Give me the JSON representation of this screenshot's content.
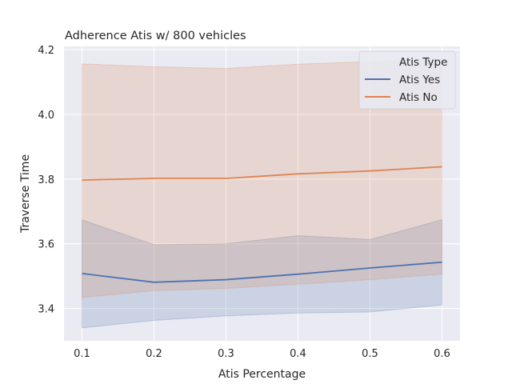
{
  "chart_data": {
    "type": "line",
    "title": "Adherence Atis w/ 800 vehicles",
    "xlabel": "Atis Percentage",
    "ylabel": "Traverse Time",
    "x": [
      0.1,
      0.2,
      0.3,
      0.4,
      0.5,
      0.6
    ],
    "x_ticks": [
      "0.1",
      "0.2",
      "0.3",
      "0.4",
      "0.5",
      "0.6"
    ],
    "y_ticks": [
      "3.4",
      "3.6",
      "3.8",
      "4.0",
      "4.2"
    ],
    "xlim": [
      0.075,
      0.625
    ],
    "ylim": [
      3.3,
      4.21
    ],
    "grid": true,
    "legend_position": "top-right",
    "legend_title": "Atis Type",
    "series": [
      {
        "name": "Atis Yes",
        "color": "#4c72b0",
        "values": [
          3.508,
          3.481,
          3.489,
          3.506,
          3.525,
          3.543
        ],
        "ci_lower": [
          3.34,
          3.363,
          3.377,
          3.386,
          3.389,
          3.411
        ],
        "ci_upper": [
          3.674,
          3.597,
          3.6,
          3.625,
          3.613,
          3.674
        ]
      },
      {
        "name": "Atis No",
        "color": "#dd8452",
        "values": [
          3.797,
          3.802,
          3.802,
          3.816,
          3.825,
          3.838
        ],
        "ci_lower": [
          3.434,
          3.455,
          3.462,
          3.475,
          3.489,
          3.506
        ],
        "ci_upper": [
          4.156,
          4.147,
          4.142,
          4.155,
          4.163,
          4.172
        ]
      }
    ]
  }
}
